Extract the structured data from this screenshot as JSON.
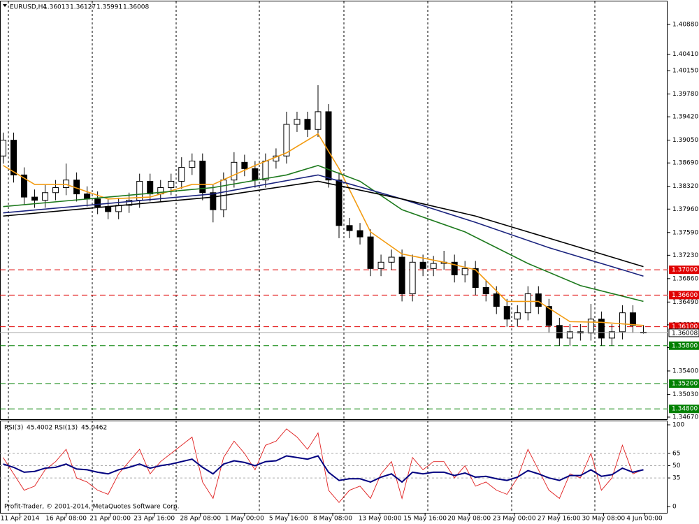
{
  "chart_data": {
    "type": "candlestick",
    "title": "EURUSD,H4",
    "open": [
      1.388,
      1.3905,
      1.385,
      1.3815,
      1.381,
      1.3822,
      1.383,
      1.3842,
      1.382,
      1.3812,
      1.38,
      1.3792,
      1.3802,
      1.381,
      1.384,
      1.382,
      1.383,
      1.384,
      1.3862,
      1.3872,
      1.3822,
      1.3795,
      1.3842,
      1.387,
      1.386,
      1.3842,
      1.3872,
      1.388,
      1.393,
      1.3938,
      1.3922,
      1.395,
      1.3842,
      1.377,
      1.3762,
      1.3752,
      1.3702,
      1.3712,
      1.372,
      1.3662,
      1.3712,
      1.3702,
      1.371,
      1.3712,
      1.3692,
      1.3702,
      1.3672,
      1.3662,
      1.3642,
      1.3622,
      1.3632,
      1.3662,
      1.3642,
      1.3612,
      1.3592,
      1.3602,
      1.36,
      1.3622,
      1.3592,
      1.3602,
      1.3632,
      1.36013
    ],
    "high": [
      1.3917,
      1.3917,
      1.3862,
      1.3827,
      1.3834,
      1.3842,
      1.3868,
      1.3854,
      1.3832,
      1.3824,
      1.3812,
      1.3814,
      1.3822,
      1.3852,
      1.3852,
      1.3842,
      1.3852,
      1.3878,
      1.3884,
      1.3884,
      1.3834,
      1.3854,
      1.3886,
      1.3882,
      1.3872,
      1.3884,
      1.3892,
      1.395,
      1.395,
      1.395,
      1.3992,
      1.3962,
      1.3854,
      1.3782,
      1.3774,
      1.3764,
      1.3724,
      1.3732,
      1.3732,
      1.3724,
      1.3724,
      1.3722,
      1.373,
      1.3724,
      1.3714,
      1.3714,
      1.3684,
      1.3674,
      1.3654,
      1.3644,
      1.3674,
      1.3674,
      1.3654,
      1.3624,
      1.3614,
      1.3614,
      1.3646,
      1.3634,
      1.3614,
      1.3644,
      1.3644,
      1.36127
    ],
    "low": [
      1.3868,
      1.3838,
      1.3803,
      1.3798,
      1.3798,
      1.381,
      1.3818,
      1.3808,
      1.38,
      1.3788,
      1.378,
      1.378,
      1.379,
      1.3798,
      1.3808,
      1.3808,
      1.3818,
      1.3828,
      1.385,
      1.381,
      1.3775,
      1.3783,
      1.383,
      1.3848,
      1.383,
      1.383,
      1.386,
      1.3868,
      1.3918,
      1.391,
      1.391,
      1.383,
      1.375,
      1.375,
      1.374,
      1.369,
      1.369,
      1.37,
      1.365,
      1.365,
      1.369,
      1.369,
      1.37,
      1.368,
      1.368,
      1.366,
      1.365,
      1.363,
      1.361,
      1.361,
      1.362,
      1.363,
      1.36,
      1.358,
      1.358,
      1.3588,
      1.3588,
      1.358,
      1.358,
      1.359,
      1.36,
      1.35991
    ],
    "close": [
      1.3905,
      1.385,
      1.3815,
      1.381,
      1.3822,
      1.383,
      1.3842,
      1.382,
      1.3812,
      1.38,
      1.3792,
      1.3802,
      1.381,
      1.384,
      1.382,
      1.383,
      1.384,
      1.3862,
      1.3872,
      1.3822,
      1.3795,
      1.3842,
      1.387,
      1.386,
      1.3842,
      1.3872,
      1.388,
      1.393,
      1.3938,
      1.3922,
      1.395,
      1.3842,
      1.377,
      1.3762,
      1.3752,
      1.3702,
      1.3712,
      1.372,
      1.3662,
      1.3712,
      1.3702,
      1.371,
      1.3712,
      1.3692,
      1.3702,
      1.3672,
      1.3662,
      1.3642,
      1.3622,
      1.3632,
      1.3662,
      1.3642,
      1.3612,
      1.3592,
      1.3602,
      1.36,
      1.3622,
      1.3592,
      1.3602,
      1.3632,
      1.3612,
      1.36008
    ],
    "moving_averages": [
      {
        "color": "#f39c12",
        "x": [
          0,
          3,
          6,
          10,
          14,
          18,
          20,
          24,
          27,
          30,
          32,
          35,
          38,
          42,
          45,
          48,
          51,
          54,
          57,
          61
        ],
        "values": [
          1.3865,
          1.3835,
          1.3835,
          1.3812,
          1.3815,
          1.3835,
          1.3835,
          1.3865,
          1.3885,
          1.3915,
          1.386,
          1.376,
          1.3725,
          1.3712,
          1.37,
          1.365,
          1.365,
          1.3618,
          1.3617,
          1.3612
        ]
      },
      {
        "color": "#1e7a1e",
        "x": [
          0,
          10,
          20,
          27,
          30,
          34,
          38,
          44,
          50,
          55,
          61
        ],
        "values": [
          1.38,
          1.3815,
          1.383,
          1.385,
          1.3865,
          1.384,
          1.3795,
          1.376,
          1.371,
          1.3675,
          1.365
        ]
      },
      {
        "color": "#1a237e",
        "x": [
          0,
          20,
          30,
          38,
          45,
          52,
          61
        ],
        "values": [
          1.379,
          1.382,
          1.385,
          1.3812,
          1.3775,
          1.3735,
          1.369
        ]
      },
      {
        "color": "#000000",
        "x": [
          0,
          20,
          30,
          38,
          45,
          52,
          61
        ],
        "values": [
          1.3785,
          1.3815,
          1.384,
          1.3812,
          1.3785,
          1.375,
          1.3705
        ]
      }
    ],
    "levels": [
      {
        "value": 1.37,
        "label": "1.37000",
        "color": "#e00000"
      },
      {
        "value": 1.366,
        "label": "1.36600",
        "color": "#e00000"
      },
      {
        "value": 1.361,
        "label": "1.36100",
        "color": "#e00000"
      },
      {
        "value": 1.358,
        "label": "1.35800",
        "color": "#008000"
      },
      {
        "value": 1.352,
        "label": "1.35200",
        "color": "#008000"
      },
      {
        "value": 1.348,
        "label": "1.34800",
        "color": "#008000"
      }
    ],
    "xlim": [
      -0.3,
      63.3
    ],
    "ylim": [
      1.34637,
      1.41245
    ],
    "yticks": [
      {
        "value": 1.4088,
        "label": "1.40880"
      },
      {
        "value": 1.4041,
        "label": "1.40410"
      },
      {
        "value": 1.4015,
        "label": "1.40150"
      },
      {
        "value": 1.3978,
        "label": "1.39780"
      },
      {
        "value": 1.3942,
        "label": "1.39420"
      },
      {
        "value": 1.3905,
        "label": "1.39050"
      },
      {
        "value": 1.3869,
        "label": "1.38690"
      },
      {
        "value": 1.3832,
        "label": "1.38320"
      },
      {
        "value": 1.3796,
        "label": "1.37960"
      },
      {
        "value": 1.3759,
        "label": "1.37590"
      },
      {
        "value": 1.3723,
        "label": "1.37230"
      },
      {
        "value": 1.3686,
        "label": "1.36860"
      },
      {
        "value": 1.3649,
        "label": "1.36490"
      },
      {
        "value": 1.3613,
        "label": "1.36130"
      },
      {
        "value": 1.3577,
        "label": "1.35770"
      },
      {
        "value": 1.354,
        "label": "1.35400"
      },
      {
        "value": 1.3503,
        "label": "1.35030"
      },
      {
        "value": 1.3467,
        "label": "1.34670"
      }
    ],
    "xticks": [
      {
        "value": 1.6,
        "label": "11 Apr 2014"
      },
      {
        "value": 6,
        "label": "16 Apr 08:00"
      },
      {
        "value": 10.2,
        "label": "21 Apr 00:00"
      },
      {
        "value": 14.4,
        "label": "23 Apr 16:00"
      },
      {
        "value": 18.8,
        "label": "28 Apr 08:00"
      },
      {
        "value": 23,
        "label": "1 May 00:00"
      },
      {
        "value": 27.2,
        "label": "5 May 16:00"
      },
      {
        "value": 31.4,
        "label": "8 May 08:00"
      },
      {
        "value": 35.9,
        "label": "13 May 00:00"
      },
      {
        "value": 40.2,
        "label": "15 May 16:00"
      },
      {
        "value": 44.4,
        "label": "20 May 08:00"
      },
      {
        "value": 48.7,
        "label": "23 May 00:00"
      },
      {
        "value": 52.96,
        "label": "27 May 16:00"
      },
      {
        "value": 57.2,
        "label": "30 May 08:00"
      },
      {
        "value": 61.1,
        "label": "4 Jun 00:00"
      }
    ],
    "rsi": {
      "ylim": [
        -8.5,
        104.3
      ],
      "yticks": [
        100,
        65,
        50,
        35,
        0
      ],
      "levels": [
        65,
        50,
        35
      ],
      "series": [
        {
          "name": "RSI(3)",
          "color": "#e02020",
          "values": [
            60,
            40,
            20,
            25,
            45,
            55,
            70,
            35,
            30,
            20,
            15,
            40,
            55,
            70,
            40,
            55,
            65,
            75,
            85,
            30,
            10,
            60,
            80,
            65,
            45,
            75,
            80,
            95,
            85,
            70,
            90,
            20,
            5,
            20,
            25,
            10,
            40,
            55,
            10,
            60,
            45,
            55,
            55,
            35,
            50,
            25,
            30,
            20,
            15,
            35,
            70,
            45,
            20,
            10,
            40,
            35,
            65,
            20,
            35,
            75,
            40,
            45.4002
          ]
        },
        {
          "name": "RSI(13)",
          "color": "#000080",
          "values": [
            52,
            48,
            42,
            43,
            47,
            48,
            52,
            46,
            45,
            42,
            40,
            45,
            48,
            52,
            47,
            50,
            52,
            55,
            58,
            48,
            40,
            52,
            56,
            54,
            50,
            55,
            56,
            62,
            60,
            58,
            62,
            42,
            32,
            34,
            34,
            30,
            36,
            40,
            30,
            42,
            40,
            42,
            42,
            38,
            41,
            36,
            37,
            34,
            32,
            36,
            44,
            40,
            35,
            32,
            38,
            38,
            45,
            37,
            39,
            47,
            42,
            45.0462
          ]
        }
      ]
    },
    "copyright": "Profit-Trader, © 2001-2014, MetaQuotes Software Corp."
  }
}
